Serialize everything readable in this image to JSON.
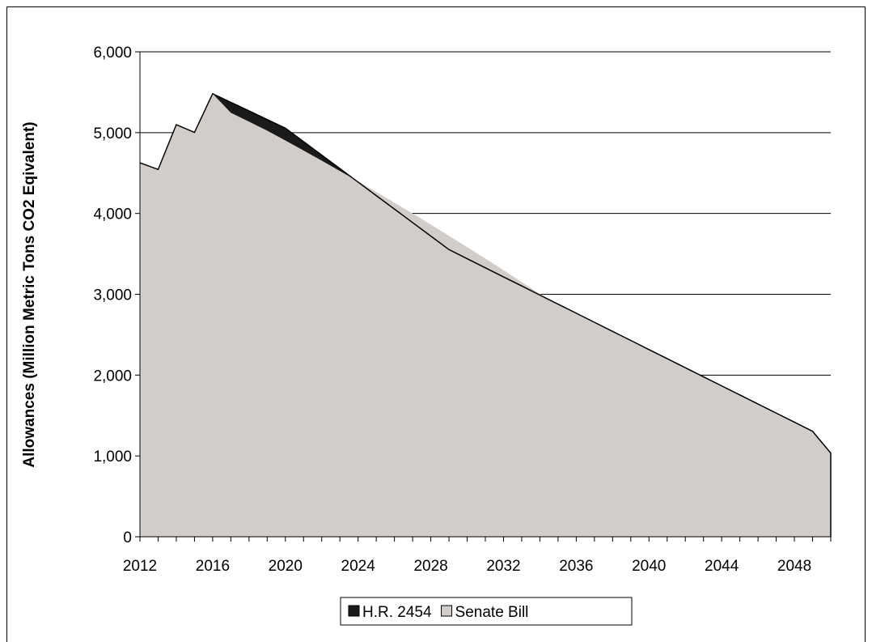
{
  "chart_data": {
    "type": "area",
    "title": "",
    "xlabel": "",
    "ylabel": "Allowances (Million Metric Tons CO2 Eqivalent)",
    "xlim": [
      2012,
      2050
    ],
    "ylim": [
      0,
      6000
    ],
    "x_ticks": [
      2012,
      2016,
      2020,
      2024,
      2028,
      2032,
      2036,
      2040,
      2044,
      2048
    ],
    "y_ticks": [
      0,
      1000,
      2000,
      3000,
      4000,
      5000,
      6000
    ],
    "y_tick_labels": [
      "0",
      "1,000",
      "2,000",
      "3,000",
      "4,000",
      "5,000",
      "6,000"
    ],
    "grid": "horizontal",
    "legend_position": "bottom",
    "x": [
      2012,
      2013,
      2014,
      2015,
      2016,
      2017,
      2018,
      2019,
      2020,
      2021,
      2022,
      2023,
      2024,
      2025,
      2026,
      2027,
      2028,
      2029,
      2030,
      2031,
      2032,
      2033,
      2034,
      2035,
      2036,
      2037,
      2038,
      2039,
      2040,
      2041,
      2042,
      2043,
      2044,
      2045,
      2046,
      2047,
      2048,
      2049,
      2050
    ],
    "series": [
      {
        "name": "H.R. 2454",
        "color": "#1a1a1a",
        "values": [
          4627,
          4544,
          5099,
          5003,
          5482,
          5375,
          5269,
          5162,
          5056,
          4889,
          4722,
          4555,
          4388,
          4221,
          4054,
          3887,
          3720,
          3553,
          3440,
          3327,
          3215,
          3103,
          2990,
          2878,
          2766,
          2653,
          2541,
          2429,
          2316,
          2204,
          2092,
          1979,
          1867,
          1755,
          1642,
          1530,
          1418,
          1305,
          1035
        ]
      },
      {
        "name": "Senate Bill",
        "color": "#d3cdca",
        "values": [
          4627,
          4544,
          5099,
          5003,
          5482,
          5246,
          5136,
          5024,
          4903,
          4779,
          4654,
          4525,
          4397,
          4266,
          4133,
          3999,
          3863,
          3724,
          3584,
          3442,
          3298,
          3152,
          3005,
          2878,
          2766,
          2653,
          2541,
          2429,
          2316,
          2204,
          2092,
          1979,
          1867,
          1755,
          1642,
          1530,
          1418,
          1305,
          1035
        ]
      }
    ]
  }
}
